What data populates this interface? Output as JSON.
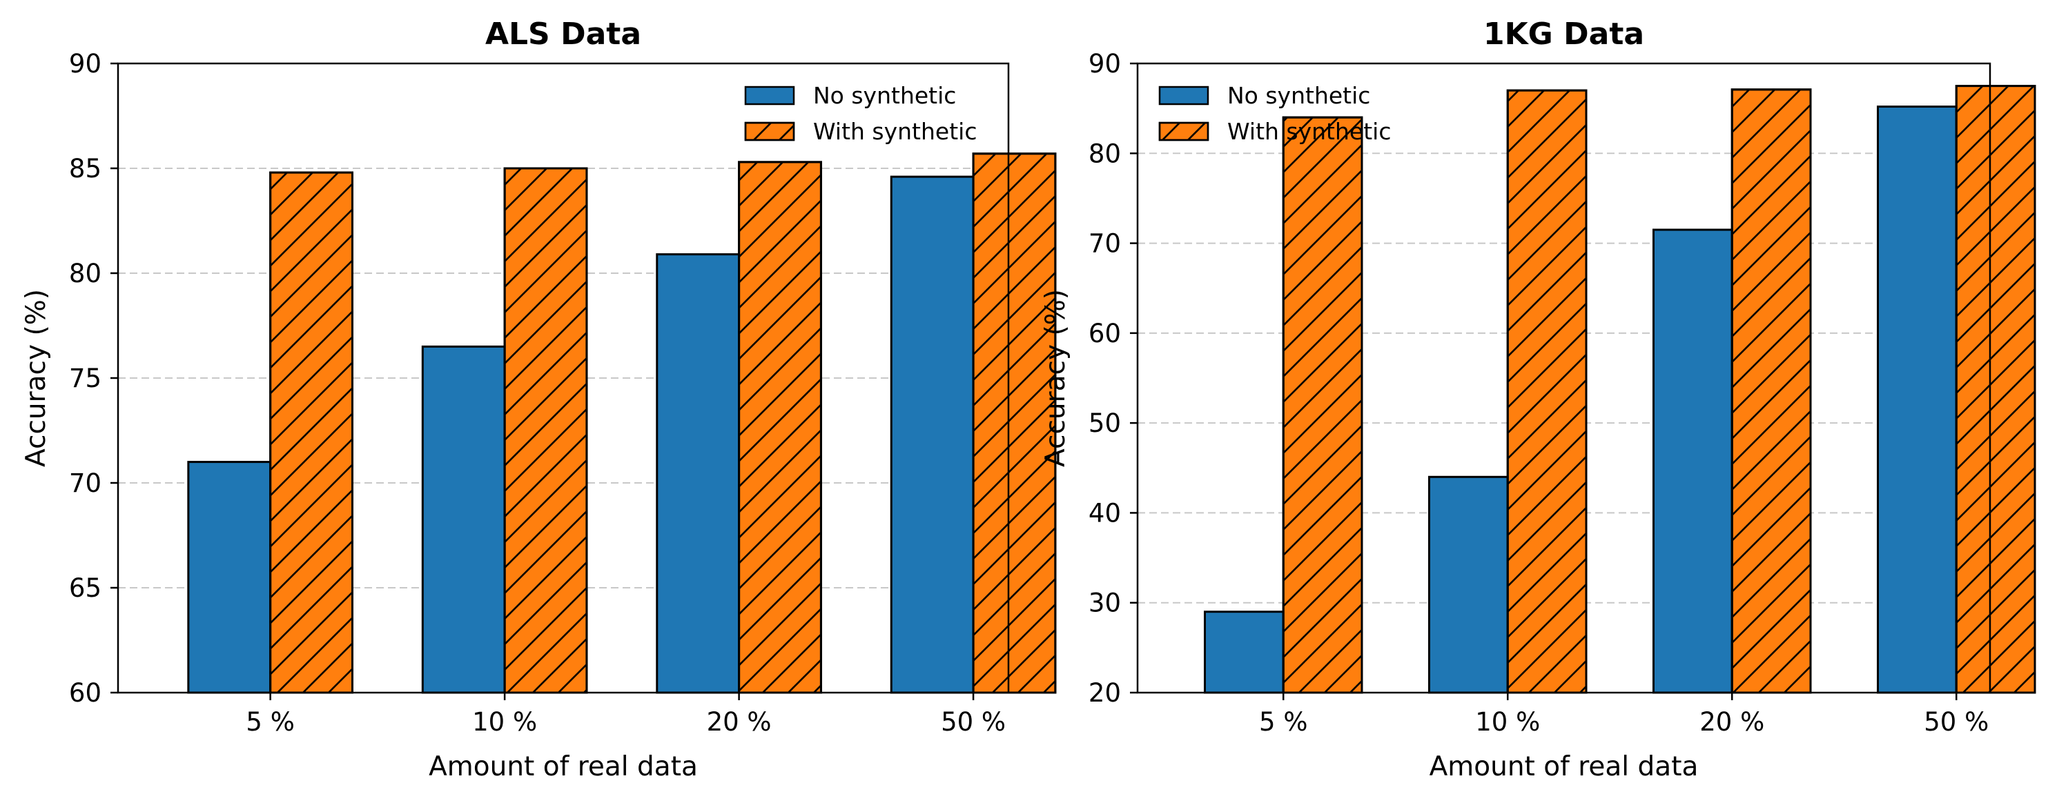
{
  "chart_data": [
    {
      "type": "bar",
      "title": "ALS Data",
      "xlabel": "Amount of real data",
      "ylabel": "Accuracy (%)",
      "categories": [
        "5 %",
        "10 %",
        "20 %",
        "50 %"
      ],
      "ylim": [
        60,
        90
      ],
      "yticks": [
        60,
        65,
        70,
        75,
        80,
        85,
        90
      ],
      "grid": "y-dashed",
      "legend_position": "top-right",
      "series": [
        {
          "name": "No synthetic",
          "values": [
            71.0,
            76.5,
            80.9,
            84.6
          ],
          "color": "#1f77b4",
          "hatch": "none"
        },
        {
          "name": "With synthetic",
          "values": [
            84.8,
            85.0,
            85.3,
            85.7
          ],
          "color": "#ff7f0e",
          "hatch": "diagonal"
        }
      ]
    },
    {
      "type": "bar",
      "title": "1KG Data",
      "xlabel": "Amount of real data",
      "ylabel": "Accuracy (%)",
      "categories": [
        "5 %",
        "10 %",
        "20 %",
        "50 %"
      ],
      "ylim": [
        20,
        90
      ],
      "yticks": [
        20,
        30,
        40,
        50,
        60,
        70,
        80,
        90
      ],
      "grid": "y-dashed",
      "legend_position": "top-left",
      "series": [
        {
          "name": "No synthetic",
          "values": [
            29.0,
            44.0,
            71.5,
            85.2
          ],
          "color": "#1f77b4",
          "hatch": "none"
        },
        {
          "name": "With synthetic",
          "values": [
            84.0,
            87.0,
            87.1,
            87.5
          ],
          "color": "#ff7f0e",
          "hatch": "diagonal"
        }
      ]
    }
  ]
}
